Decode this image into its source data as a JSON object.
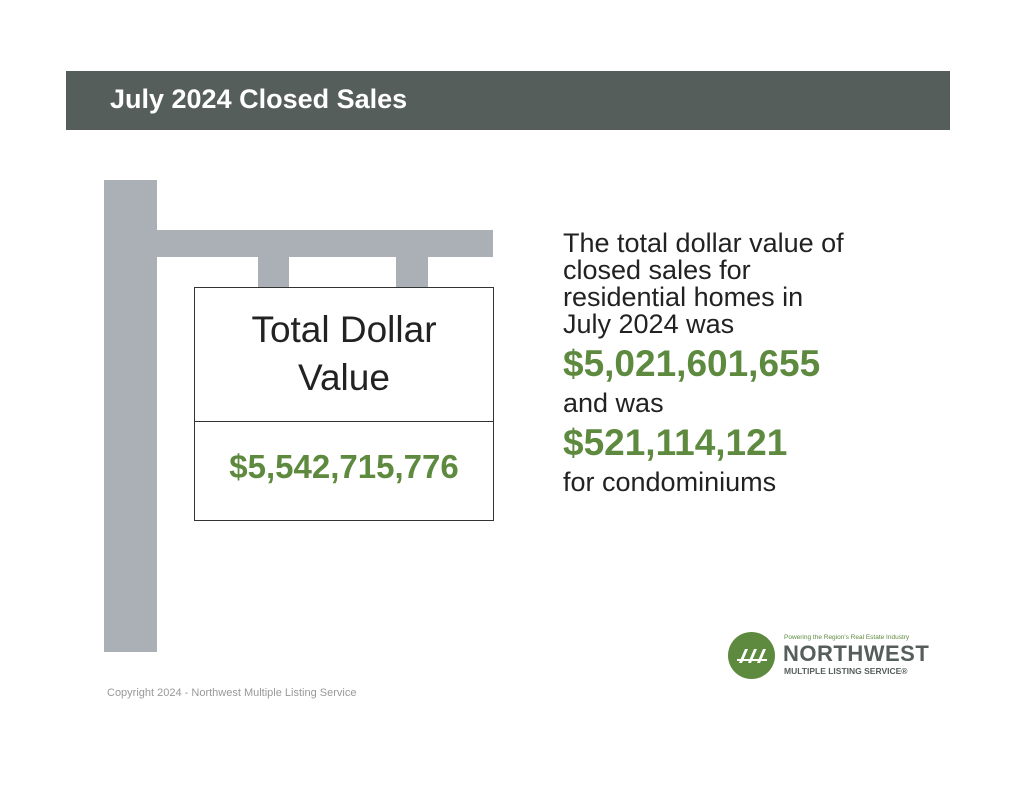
{
  "header": {
    "title": "July 2024 Closed Sales"
  },
  "sign": {
    "label": "Total Dollar Value",
    "value": "$5,542,715,776"
  },
  "summary": {
    "intro": "The total dollar value of closed sales for residential homes in July 2024 was",
    "residential_value": "$5,021,601,655",
    "connector": "and was",
    "condo_value": "$521,114,121",
    "outro": "for condominiums"
  },
  "logo": {
    "tagline": "Powering the Region's Real Estate Industry",
    "name": "NORTHWEST",
    "subname": "MULTIPLE LISTING SERVICE®"
  },
  "footer": {
    "copyright": "Copyright 2024 - Northwest Multiple Listing Service"
  }
}
